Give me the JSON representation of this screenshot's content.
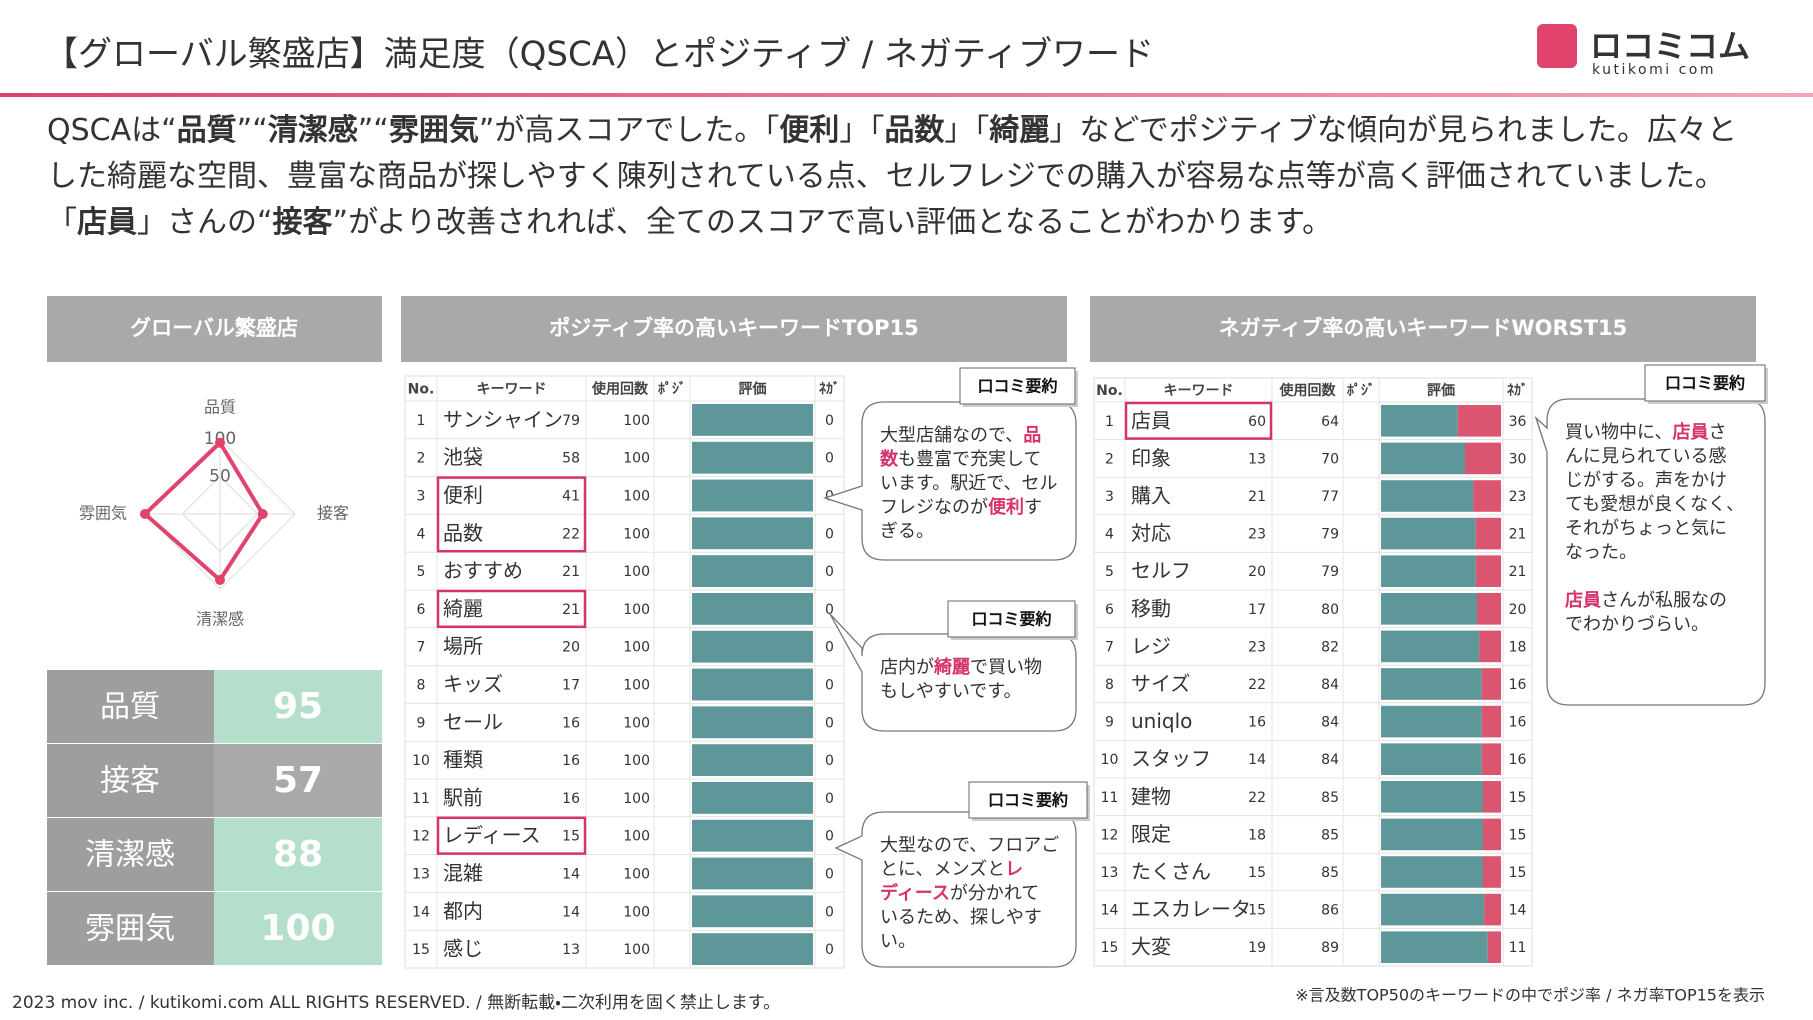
{
  "header": {
    "title": "【グローバル繁盛店】満足度（QSCA）とポジティブ / ネガティブワード",
    "logo": {
      "name": "ロコミコム",
      "sub": "kutikomi com"
    }
  },
  "summary": {
    "lines": [
      [
        "QSCAは“",
        {
          "text": "品質",
          "bold": true
        },
        "”“",
        {
          "text": "清潔感",
          "bold": true
        },
        "”“",
        {
          "text": "雰囲気",
          "bold": true
        },
        "”が高スコアでした。「",
        {
          "text": "便利",
          "bold": true
        },
        "」「",
        {
          "text": "品数",
          "bold": true
        },
        "」「",
        {
          "text": "綺麗",
          "bold": true
        },
        "」などでポジティブな傾向が見られました。広々と"
      ],
      [
        "した綺麗な空間、豊富な商品が探しやすく陳列されている点、セルフレジでの購入が容易な点等が高く評価されていました。"
      ],
      [
        "「",
        {
          "text": "店員",
          "bold": true
        },
        "」さんの“",
        {
          "text": "接客",
          "bold": true
        },
        "”がより改善されれば、全てのスコアで高い評価となることがわかります。"
      ]
    ]
  },
  "panels": {
    "store": "グローバル繁盛店",
    "positive": "ポジティブ率の高いキーワードTOP15",
    "negative": "ネガティブ率の高いキーワードWORST15"
  },
  "chart_data": {
    "type": "radar",
    "categories": [
      "品質",
      "接客",
      "清潔感",
      "雰囲気"
    ],
    "values": [
      95,
      57,
      88,
      100
    ],
    "color": "#e0436b",
    "ylim": [
      0,
      100
    ],
    "yticks": [
      50,
      100
    ],
    "grid": true
  },
  "score_table": {
    "rows": [
      {
        "label": "品質",
        "value": 95,
        "color": "#b4e0cb"
      },
      {
        "label": "接客",
        "value": 57,
        "color": "#a9a9a9"
      },
      {
        "label": "清潔感",
        "value": 88,
        "color": "#b4e0cb"
      },
      {
        "label": "雰囲気",
        "value": 100,
        "color": "#b4e0cb"
      }
    ]
  },
  "positive_table": {
    "columns": [
      "No.",
      "キーワード",
      "使用回数",
      "ﾎﾟｼﾞ",
      "評価",
      "ﾈｶﾞ"
    ],
    "bar_colors": {
      "positive": "#5e9799",
      "negative": "#db5570"
    },
    "rows": [
      {
        "no": 1,
        "keyword": "サンシャイン",
        "count": 79,
        "positive": 100,
        "negative": 0
      },
      {
        "no": 2,
        "keyword": "池袋",
        "count": 58,
        "positive": 100,
        "negative": 0
      },
      {
        "no": 3,
        "keyword": "便利",
        "count": 41,
        "positive": 100,
        "negative": 0,
        "highlight": true
      },
      {
        "no": 4,
        "keyword": "品数",
        "count": 22,
        "positive": 100,
        "negative": 0,
        "highlight": true
      },
      {
        "no": 5,
        "keyword": "おすすめ",
        "count": 21,
        "positive": 100,
        "negative": 0
      },
      {
        "no": 6,
        "keyword": "綺麗",
        "count": 21,
        "positive": 100,
        "negative": 0,
        "highlight": true
      },
      {
        "no": 7,
        "keyword": "場所",
        "count": 20,
        "positive": 100,
        "negative": 0
      },
      {
        "no": 8,
        "keyword": "キッズ",
        "count": 17,
        "positive": 100,
        "negative": 0
      },
      {
        "no": 9,
        "keyword": "セール",
        "count": 16,
        "positive": 100,
        "negative": 0
      },
      {
        "no": 10,
        "keyword": "種類",
        "count": 16,
        "positive": 100,
        "negative": 0
      },
      {
        "no": 11,
        "keyword": "駅前",
        "count": 16,
        "positive": 100,
        "negative": 0
      },
      {
        "no": 12,
        "keyword": "レディース",
        "count": 15,
        "positive": 100,
        "negative": 0,
        "highlight": true
      },
      {
        "no": 13,
        "keyword": "混雑",
        "count": 14,
        "positive": 100,
        "negative": 0
      },
      {
        "no": 14,
        "keyword": "都内",
        "count": 14,
        "positive": 100,
        "negative": 0
      },
      {
        "no": 15,
        "keyword": "感じ",
        "count": 13,
        "positive": 100,
        "negative": 0
      }
    ]
  },
  "negative_table": {
    "columns": [
      "No.",
      "キーワード",
      "使用回数",
      "ﾎﾟｼﾞ",
      "評価",
      "ﾈｶﾞ"
    ],
    "bar_colors": {
      "positive": "#5e9799",
      "negative": "#db5570"
    },
    "rows": [
      {
        "no": 1,
        "keyword": "店員",
        "count": 60,
        "positive": 64,
        "negative": 36,
        "highlight": true
      },
      {
        "no": 2,
        "keyword": "印象",
        "count": 13,
        "positive": 70,
        "negative": 30
      },
      {
        "no": 3,
        "keyword": "購入",
        "count": 21,
        "positive": 77,
        "negative": 23
      },
      {
        "no": 4,
        "keyword": "対応",
        "count": 23,
        "positive": 79,
        "negative": 21
      },
      {
        "no": 5,
        "keyword": "セルフ",
        "count": 20,
        "positive": 79,
        "negative": 21
      },
      {
        "no": 6,
        "keyword": "移動",
        "count": 17,
        "positive": 80,
        "negative": 20
      },
      {
        "no": 7,
        "keyword": "レジ",
        "count": 23,
        "positive": 82,
        "negative": 18
      },
      {
        "no": 8,
        "keyword": "サイズ",
        "count": 22,
        "positive": 84,
        "negative": 16
      },
      {
        "no": 9,
        "keyword": "uniqlo",
        "count": 16,
        "positive": 84,
        "negative": 16
      },
      {
        "no": 10,
        "keyword": "スタッフ",
        "count": 14,
        "positive": 84,
        "negative": 16
      },
      {
        "no": 11,
        "keyword": "建物",
        "count": 22,
        "positive": 85,
        "negative": 15
      },
      {
        "no": 12,
        "keyword": "限定",
        "count": 18,
        "positive": 85,
        "negative": 15
      },
      {
        "no": 13,
        "keyword": "たくさん",
        "count": 15,
        "positive": 85,
        "negative": 15
      },
      {
        "no": 14,
        "keyword": "エスカレータ",
        "count": 15,
        "positive": 86,
        "negative": 14
      },
      {
        "no": 15,
        "keyword": "大変",
        "count": 19,
        "positive": 89,
        "negative": 11
      }
    ]
  },
  "callouts": [
    {
      "label": "口コミ要約",
      "lines": [
        [
          "大型店舗なので、",
          {
            "text": "品",
            "highlight": true
          }
        ],
        [
          {
            "text": "数",
            "highlight": true
          },
          "も豊富で充実して"
        ],
        [
          "います。駅近で、セル"
        ],
        [
          "フレジなのが",
          {
            "text": "便利",
            "highlight": true
          },
          "す"
        ],
        [
          "ぎる。"
        ]
      ]
    },
    {
      "label": "口コミ要約",
      "lines": [
        [
          "店内が",
          {
            "text": "綺麗",
            "highlight": true
          },
          "で買い物"
        ],
        [
          "もしやすいです。"
        ]
      ]
    },
    {
      "label": "口コミ要約",
      "lines": [
        [
          "大型なので、フロアご"
        ],
        [
          "とに、メンズと",
          {
            "text": "レ",
            "highlight": true
          }
        ],
        [
          {
            "text": "ディース",
            "highlight": true
          },
          "が分かれて"
        ],
        [
          "いるため、探しやす"
        ],
        [
          "い。"
        ]
      ]
    },
    {
      "label": "口コミ要約",
      "lines": [
        [
          "買い物中に、",
          {
            "text": "店員",
            "highlight": true
          },
          "さ"
        ],
        [
          "んに見られている感"
        ],
        [
          "じがする。声をかけ"
        ],
        [
          "ても愛想が良くなく、"
        ],
        [
          "それがちょっと気に"
        ],
        [
          "なった。"
        ],
        [],
        [
          {
            "text": "店員",
            "highlight": true
          },
          "さんが私服なの"
        ],
        [
          "でわかりづらい。"
        ]
      ]
    }
  ],
  "footer": {
    "copyright": "2023 mov inc. / kutikomi.com ALL RIGHTS RESERVED. / 無断転載・二次利用を固く禁止します。",
    "note": "※言及数TOP50のキーワードの中でポジ率 / ネガ率TOP15を表示"
  }
}
